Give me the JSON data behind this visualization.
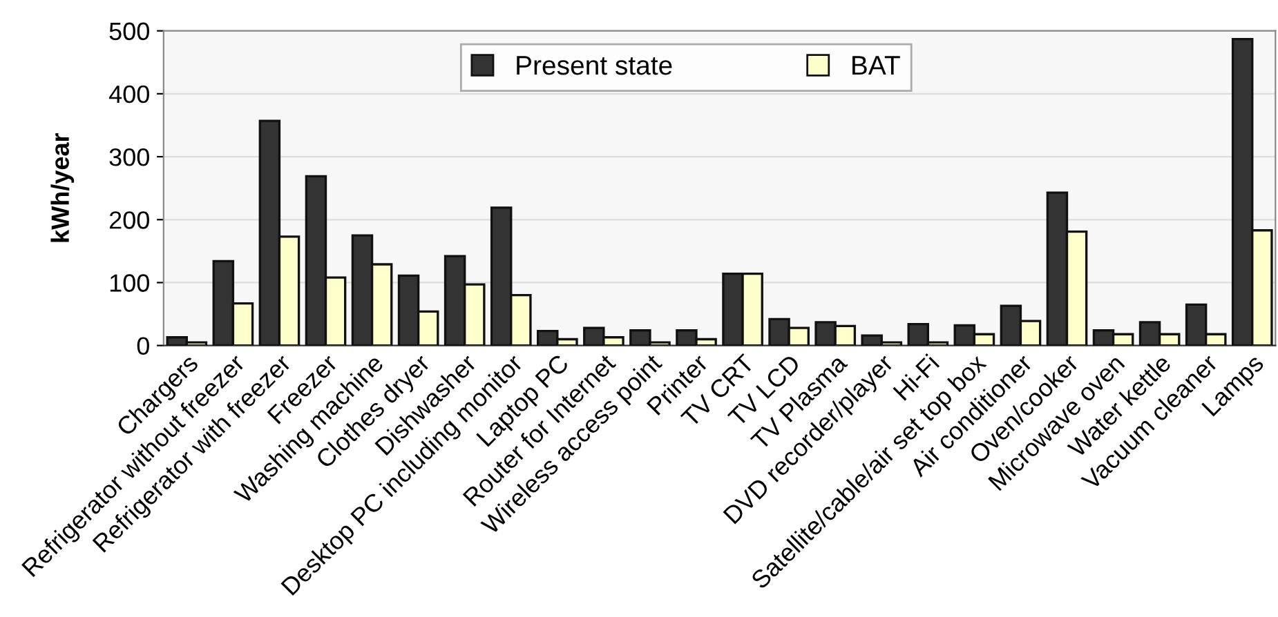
{
  "chart_data": {
    "type": "bar",
    "ylabel": "kWh/year",
    "categories": [
      "Chargers",
      "Refrigerator without freezer",
      "Refrigerator with freezer",
      "Freezer",
      "Washing machine",
      "Clothes dryer",
      "Dishwasher",
      "Desktop PC including monitor",
      "Laptop PC",
      "Router for Internet",
      "Wireless access point",
      "Printer",
      "TV CRT",
      "TV LCD",
      "TV Plasma",
      "DVD recorder/player",
      "Hi-Fi",
      "Satellite/cable/air set top box",
      "Air conditioner",
      "Oven/cooker",
      "Microwave oven",
      "Water kettle",
      "Vacuum cleaner",
      "Lamps"
    ],
    "series": [
      {
        "name": "Present state",
        "color": "#333333",
        "values": [
          13,
          134,
          357,
          269,
          175,
          111,
          142,
          219,
          23,
          28,
          24,
          24,
          114,
          42,
          37,
          16,
          34,
          32,
          63,
          243,
          24,
          37,
          65,
          487
        ]
      },
      {
        "name": "BAT",
        "color": "#ffffcc",
        "values": [
          5,
          67,
          173,
          108,
          129,
          54,
          97,
          80,
          10,
          13,
          5,
          10,
          114,
          28,
          31,
          5,
          5,
          18,
          39,
          181,
          18,
          18,
          18,
          183
        ]
      }
    ],
    "ylim": [
      0,
      500
    ],
    "yticks": [
      0,
      100,
      200,
      300,
      400,
      500
    ],
    "grid": "y",
    "legend": "top"
  }
}
